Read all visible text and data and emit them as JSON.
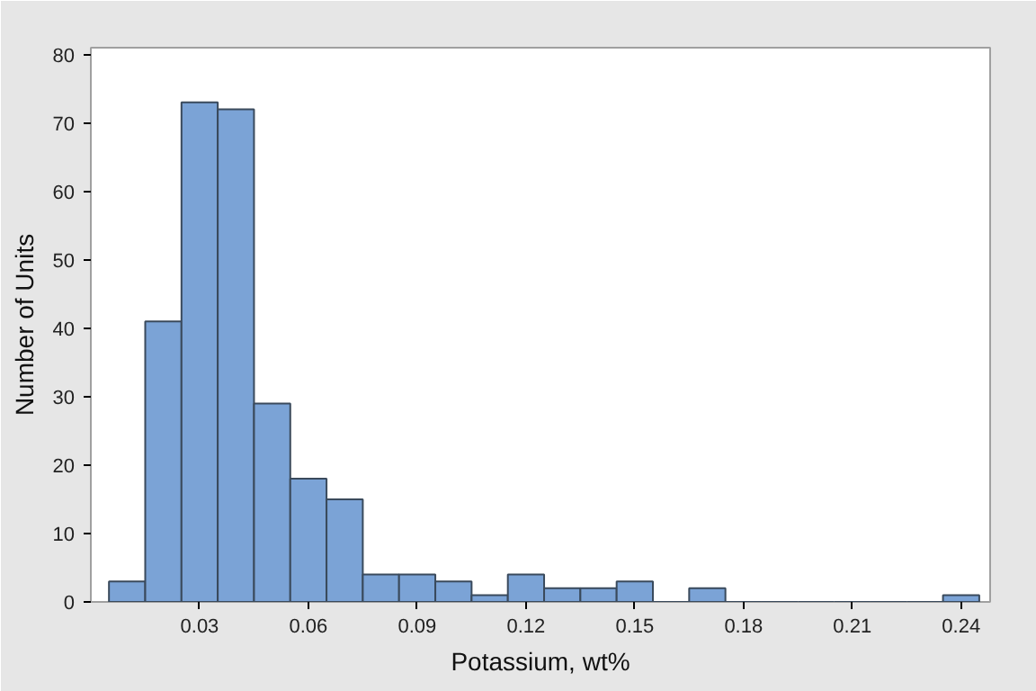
{
  "chart_data": {
    "type": "histogram",
    "xlabel": "Potassium, wt%",
    "ylabel": "Number of Units",
    "bins": [
      0.005,
      0.015,
      0.025,
      0.035,
      0.045,
      0.055,
      0.065,
      0.075,
      0.085,
      0.095,
      0.105,
      0.115,
      0.125,
      0.135,
      0.145,
      0.155,
      0.165,
      0.175,
      0.185,
      0.195,
      0.205,
      0.215,
      0.225,
      0.235,
      0.245
    ],
    "values": [
      3,
      41,
      73,
      72,
      29,
      18,
      15,
      4,
      4,
      3,
      1,
      4,
      2,
      2,
      3,
      0,
      2,
      0,
      0,
      0,
      0,
      0,
      0,
      1
    ],
    "color": "#7ba3d6",
    "xlim": [
      0,
      0.248
    ],
    "ylim": [
      0,
      81
    ],
    "xticks": [
      {
        "value": 0.03,
        "label": "0.03"
      },
      {
        "value": 0.06,
        "label": "0.06"
      },
      {
        "value": 0.09,
        "label": "0.09"
      },
      {
        "value": 0.12,
        "label": "0.12"
      },
      {
        "value": 0.15,
        "label": "0.15"
      },
      {
        "value": 0.18,
        "label": "0.18"
      },
      {
        "value": 0.21,
        "label": "0.21"
      },
      {
        "value": 0.24,
        "label": "0.24"
      }
    ],
    "yticks": [
      0,
      10,
      20,
      30,
      40,
      50,
      60,
      70,
      80
    ],
    "grid": false
  }
}
